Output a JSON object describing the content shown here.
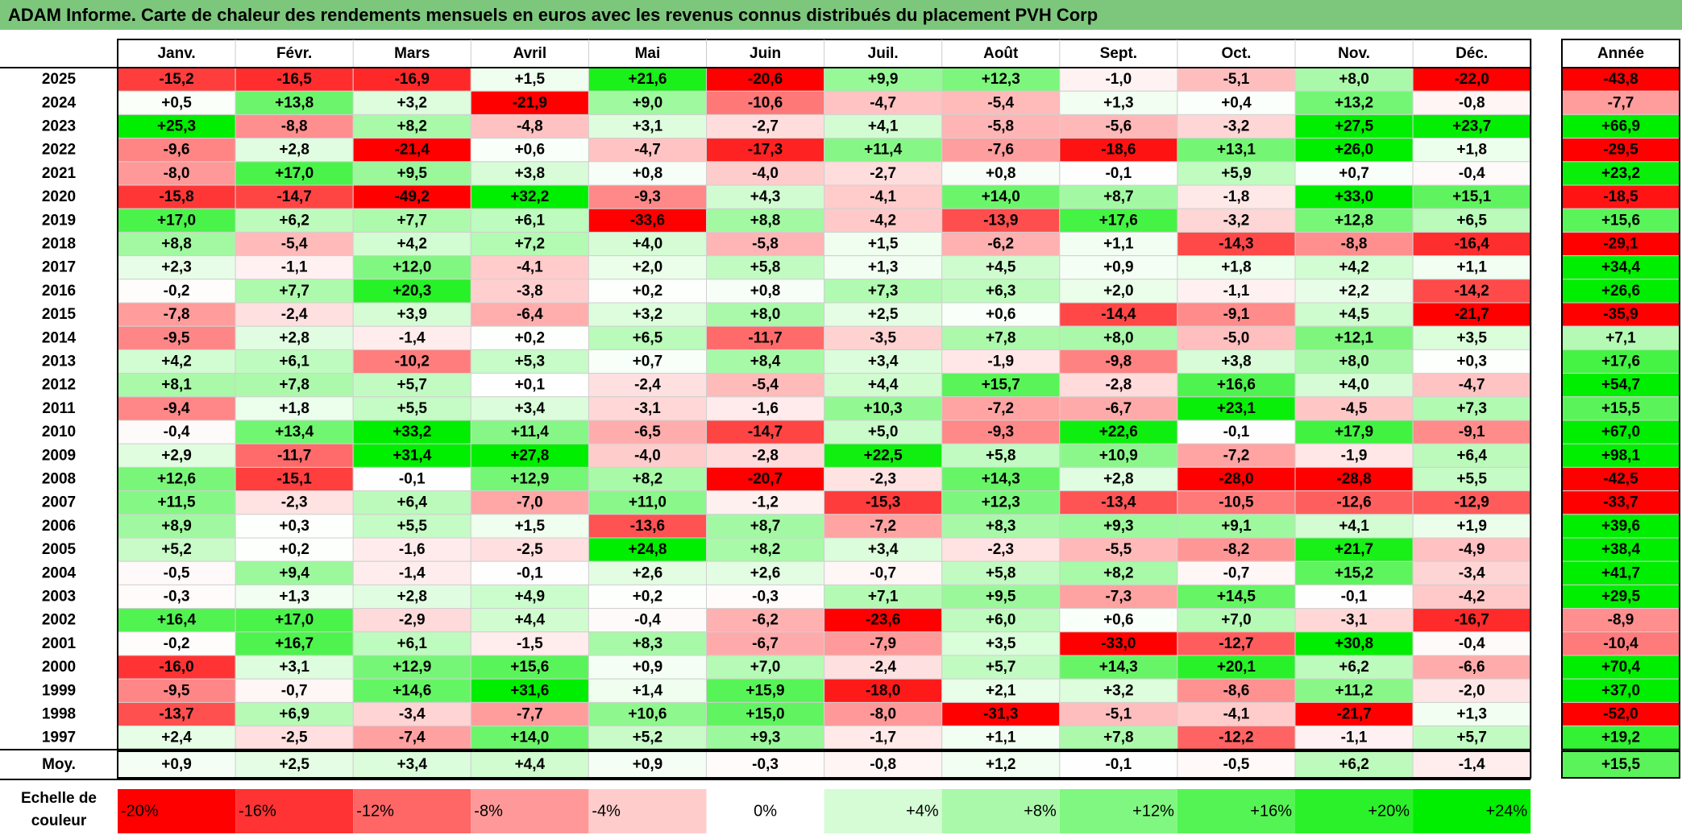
{
  "title": "ADAM Informe. Carte de chaleur des rendements mensuels en euros avec les revenus connus distribués du placement PVH Corp",
  "chart_data": {
    "type": "heatmap",
    "months": [
      "Janv.",
      "Févr.",
      "Mars",
      "Avril",
      "Mai",
      "Juin",
      "Juil.",
      "Août",
      "Sept.",
      "Oct.",
      "Nov.",
      "Déc."
    ],
    "year_column_header": "Année",
    "average_label": "Moy.",
    "scale_label_lines": [
      "Echelle de",
      "couleur"
    ],
    "rows": [
      {
        "year": "2025",
        "values": [
          -15.2,
          -16.5,
          -16.9,
          1.5,
          21.6,
          -20.6,
          9.9,
          12.3,
          -1.0,
          -5.1,
          8.0,
          -22.0
        ],
        "annual": -43.8
      },
      {
        "year": "2024",
        "values": [
          0.5,
          13.8,
          3.2,
          -21.9,
          9.0,
          -10.6,
          -4.7,
          -5.4,
          1.3,
          0.4,
          13.2,
          -0.8
        ],
        "annual": -7.7
      },
      {
        "year": "2023",
        "values": [
          25.3,
          -8.8,
          8.2,
          -4.8,
          3.1,
          -2.7,
          4.1,
          -5.8,
          -5.6,
          -3.2,
          27.5,
          23.7
        ],
        "annual": 66.9
      },
      {
        "year": "2022",
        "values": [
          -9.6,
          2.8,
          -21.4,
          0.6,
          -4.7,
          -17.3,
          11.4,
          -7.6,
          -18.6,
          13.1,
          26.0,
          1.8
        ],
        "annual": -29.5
      },
      {
        "year": "2021",
        "values": [
          -8.0,
          17.0,
          9.5,
          3.8,
          0.8,
          -4.0,
          -2.7,
          0.8,
          -0.1,
          5.9,
          0.7,
          -0.4
        ],
        "annual": 23.2
      },
      {
        "year": "2020",
        "values": [
          -15.8,
          -14.7,
          -49.2,
          32.2,
          -9.3,
          4.3,
          -4.1,
          14.0,
          8.7,
          -1.8,
          33.0,
          15.1
        ],
        "annual": -18.5
      },
      {
        "year": "2019",
        "values": [
          17.0,
          6.2,
          7.7,
          6.1,
          -33.6,
          8.8,
          -4.2,
          -13.9,
          17.6,
          -3.2,
          12.8,
          6.5
        ],
        "annual": 15.6
      },
      {
        "year": "2018",
        "values": [
          8.8,
          -5.4,
          4.2,
          7.2,
          4.0,
          -5.8,
          1.5,
          -6.2,
          1.1,
          -14.3,
          -8.8,
          -16.4
        ],
        "annual": -29.1
      },
      {
        "year": "2017",
        "values": [
          2.3,
          -1.1,
          12.0,
          -4.1,
          2.0,
          5.8,
          1.3,
          4.5,
          0.9,
          1.8,
          4.2,
          1.1
        ],
        "annual": 34.4
      },
      {
        "year": "2016",
        "values": [
          -0.2,
          7.7,
          20.3,
          -3.8,
          0.2,
          0.8,
          7.3,
          6.3,
          2.0,
          -1.1,
          2.2,
          -14.2
        ],
        "annual": 26.6
      },
      {
        "year": "2015",
        "values": [
          -7.8,
          -2.4,
          3.9,
          -6.4,
          3.2,
          8.0,
          2.5,
          0.6,
          -14.4,
          -9.1,
          4.5,
          -21.7
        ],
        "annual": -35.9
      },
      {
        "year": "2014",
        "values": [
          -9.5,
          2.8,
          -1.4,
          0.2,
          6.5,
          -11.7,
          -3.5,
          7.8,
          8.0,
          -5.0,
          12.1,
          3.5
        ],
        "annual": 7.1
      },
      {
        "year": "2013",
        "values": [
          4.2,
          6.1,
          -10.2,
          5.3,
          0.7,
          8.4,
          3.4,
          -1.9,
          -9.8,
          3.8,
          8.0,
          0.3
        ],
        "annual": 17.6
      },
      {
        "year": "2012",
        "values": [
          8.1,
          7.8,
          5.7,
          0.1,
          -2.4,
          -5.4,
          4.4,
          15.7,
          -2.8,
          16.6,
          4.0,
          -4.7
        ],
        "annual": 54.7
      },
      {
        "year": "2011",
        "values": [
          -9.4,
          1.8,
          5.5,
          3.4,
          -3.1,
          -1.6,
          10.3,
          -7.2,
          -6.7,
          23.1,
          -4.5,
          7.3
        ],
        "annual": 15.5
      },
      {
        "year": "2010",
        "values": [
          -0.4,
          13.4,
          33.2,
          11.4,
          -6.5,
          -14.7,
          5.0,
          -9.3,
          22.6,
          -0.1,
          17.9,
          -9.1
        ],
        "annual": 67.0
      },
      {
        "year": "2009",
        "values": [
          2.9,
          -11.7,
          31.4,
          27.8,
          -4.0,
          -2.8,
          22.5,
          5.8,
          10.9,
          -7.2,
          -1.9,
          6.4
        ],
        "annual": 98.1
      },
      {
        "year": "2008",
        "values": [
          12.6,
          -15.1,
          -0.1,
          12.9,
          8.2,
          -20.7,
          -2.3,
          14.3,
          2.8,
          -28.0,
          -28.8,
          5.5
        ],
        "annual": -42.5
      },
      {
        "year": "2007",
        "values": [
          11.5,
          -2.3,
          6.4,
          -7.0,
          11.0,
          -1.2,
          -15.3,
          12.3,
          -13.4,
          -10.5,
          -12.6,
          -12.9
        ],
        "annual": -33.7
      },
      {
        "year": "2006",
        "values": [
          8.9,
          0.3,
          5.5,
          1.5,
          -13.6,
          8.7,
          -7.2,
          8.3,
          9.3,
          9.1,
          4.1,
          1.9
        ],
        "annual": 39.6
      },
      {
        "year": "2005",
        "values": [
          5.2,
          0.2,
          -1.6,
          -2.5,
          24.8,
          8.2,
          3.4,
          -2.3,
          -5.5,
          -8.2,
          21.7,
          -4.9
        ],
        "annual": 38.4
      },
      {
        "year": "2004",
        "values": [
          -0.5,
          9.4,
          -1.4,
          -0.1,
          2.6,
          2.6,
          -0.7,
          5.8,
          8.2,
          -0.7,
          15.2,
          -3.4
        ],
        "annual": 41.7
      },
      {
        "year": "2003",
        "values": [
          -0.3,
          1.3,
          2.8,
          4.9,
          0.2,
          -0.3,
          7.1,
          9.5,
          -7.3,
          14.5,
          -0.1,
          -4.2
        ],
        "annual": 29.5
      },
      {
        "year": "2002",
        "values": [
          16.4,
          17.0,
          -2.9,
          4.4,
          -0.4,
          -6.2,
          -23.6,
          6.0,
          0.6,
          7.0,
          -3.1,
          -16.7
        ],
        "annual": -8.9
      },
      {
        "year": "2001",
        "values": [
          -0.2,
          16.7,
          6.1,
          -1.5,
          8.3,
          -6.7,
          -7.9,
          3.5,
          -33.0,
          -12.7,
          30.8,
          -0.4
        ],
        "annual": -10.4
      },
      {
        "year": "2000",
        "values": [
          -16.0,
          3.1,
          12.9,
          15.6,
          0.9,
          7.0,
          -2.4,
          5.7,
          14.3,
          20.1,
          6.2,
          -6.6
        ],
        "annual": 70.4
      },
      {
        "year": "1999",
        "values": [
          -9.5,
          -0.7,
          14.6,
          31.6,
          1.4,
          15.9,
          -18.0,
          2.1,
          3.2,
          -8.6,
          11.2,
          -2.0
        ],
        "annual": 37.0
      },
      {
        "year": "1998",
        "values": [
          -13.7,
          6.9,
          -3.4,
          -7.7,
          10.6,
          15.0,
          -8.0,
          -31.3,
          -5.1,
          -4.1,
          -21.7,
          1.3
        ],
        "annual": -52.0
      },
      {
        "year": "1997",
        "values": [
          2.4,
          -2.5,
          -7.4,
          14.0,
          5.2,
          9.3,
          -1.7,
          1.1,
          7.8,
          -12.2,
          -1.1,
          5.7
        ],
        "annual": 19.2
      }
    ],
    "averages": [
      0.9,
      2.5,
      3.4,
      4.4,
      0.9,
      -0.3,
      -0.8,
      1.2,
      -0.1,
      -0.5,
      6.2,
      -1.4
    ],
    "average_annual": 15.5,
    "color_scale": [
      {
        "value": -20,
        "label": "-20%"
      },
      {
        "value": -16,
        "label": "-16%"
      },
      {
        "value": -12,
        "label": "-12%"
      },
      {
        "value": -8,
        "label": "-8%"
      },
      {
        "value": -4,
        "label": "-4%"
      },
      {
        "value": 0,
        "label": "0%"
      },
      {
        "value": 4,
        "label": "+4%"
      },
      {
        "value": 8,
        "label": "+8%"
      },
      {
        "value": 12,
        "label": "+12%"
      },
      {
        "value": 16,
        "label": "+16%"
      },
      {
        "value": 20,
        "label": "+20%"
      },
      {
        "value": 24,
        "label": "+24%"
      }
    ],
    "colors": {
      "negative": "#ff0000",
      "neutral": "#ffffff",
      "positive": "#00ee00"
    }
  }
}
